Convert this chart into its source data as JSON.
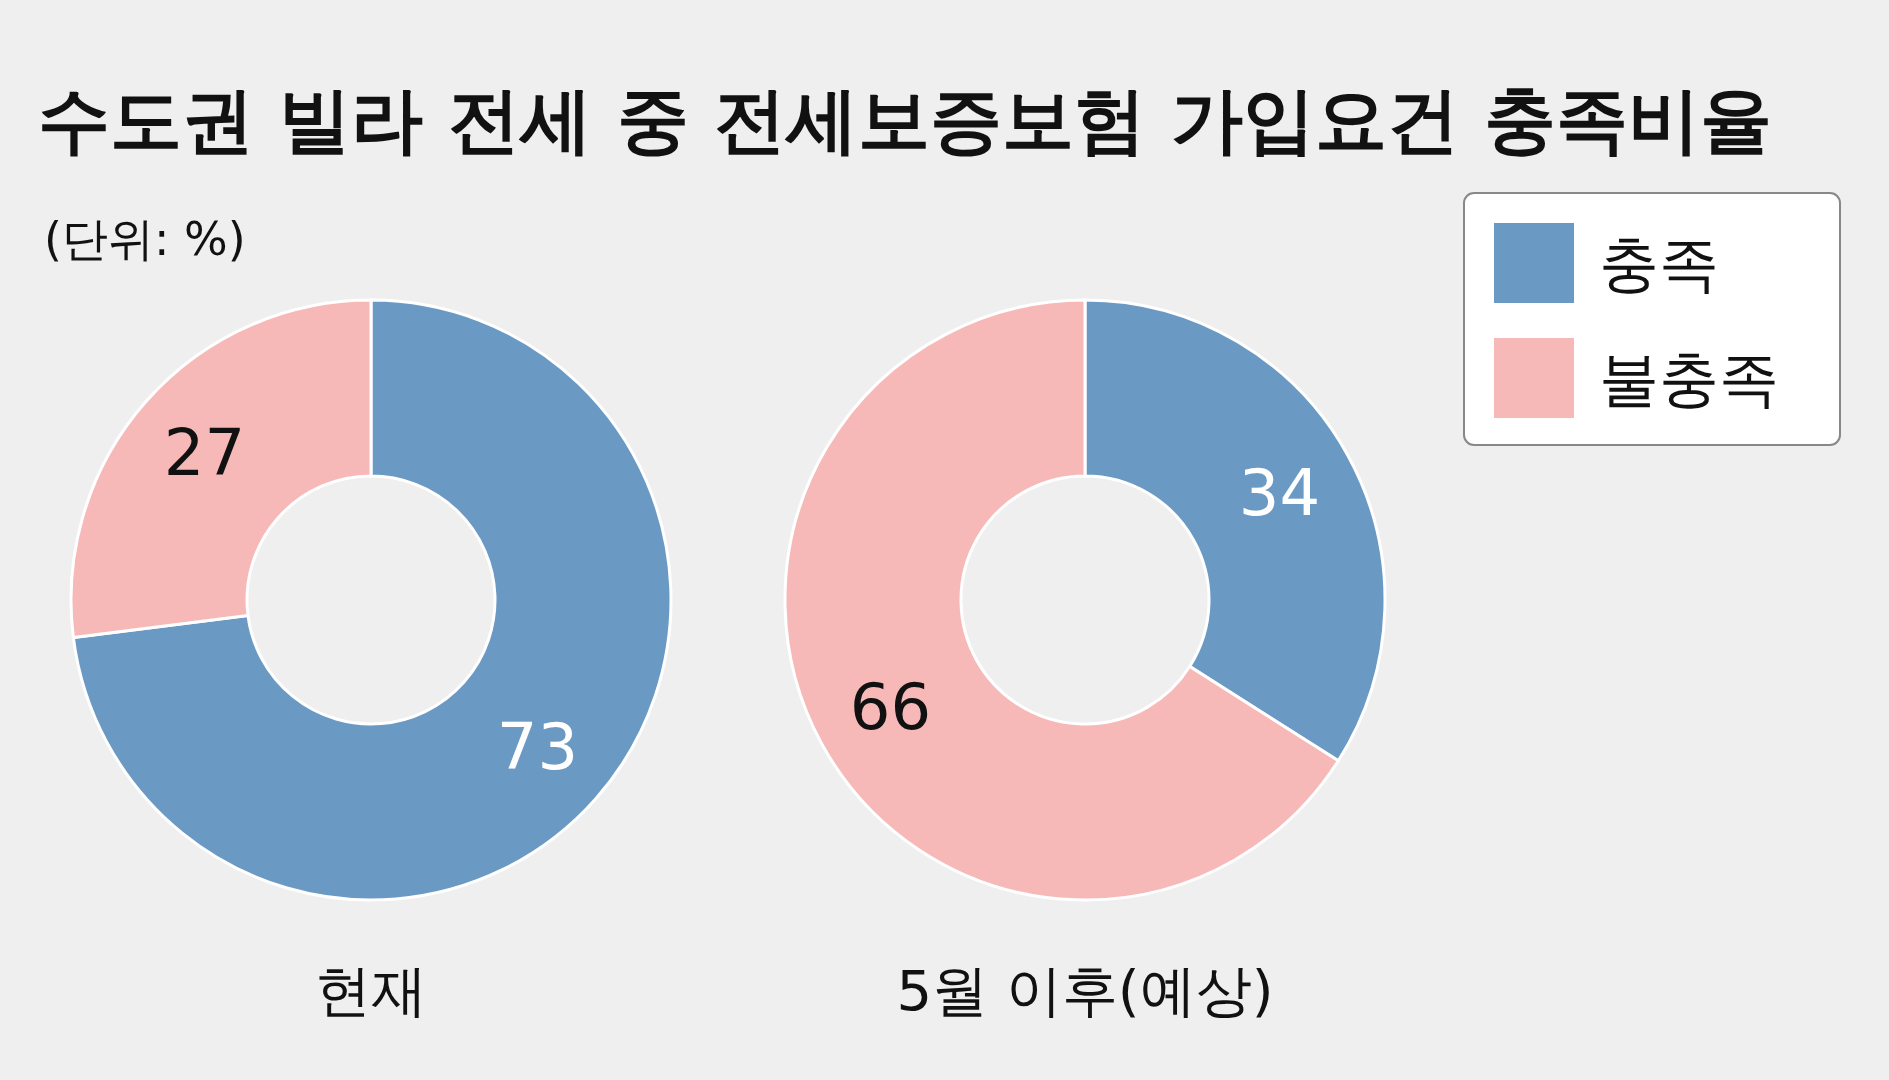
{
  "chart_data": [
    {
      "type": "donut",
      "title": "수도권 빌라 전세 중 전세보증보험 가입요건 충족비율",
      "subtitle": "(단위: %)",
      "xlabel": "현재",
      "categories": [
        "충족",
        "불충족"
      ],
      "values": [
        73,
        27
      ],
      "colors": [
        "#6a9ac4",
        "#f7b8b8"
      ],
      "data_labels": true,
      "legend": "top right"
    },
    {
      "type": "donut",
      "xlabel": "5월 이후(예상)",
      "values": [
        34,
        66
      ],
      "colors": [
        "#6a9ac4",
        "#f7b8b8"
      ],
      "data_labels": true
    }
  ]
}
